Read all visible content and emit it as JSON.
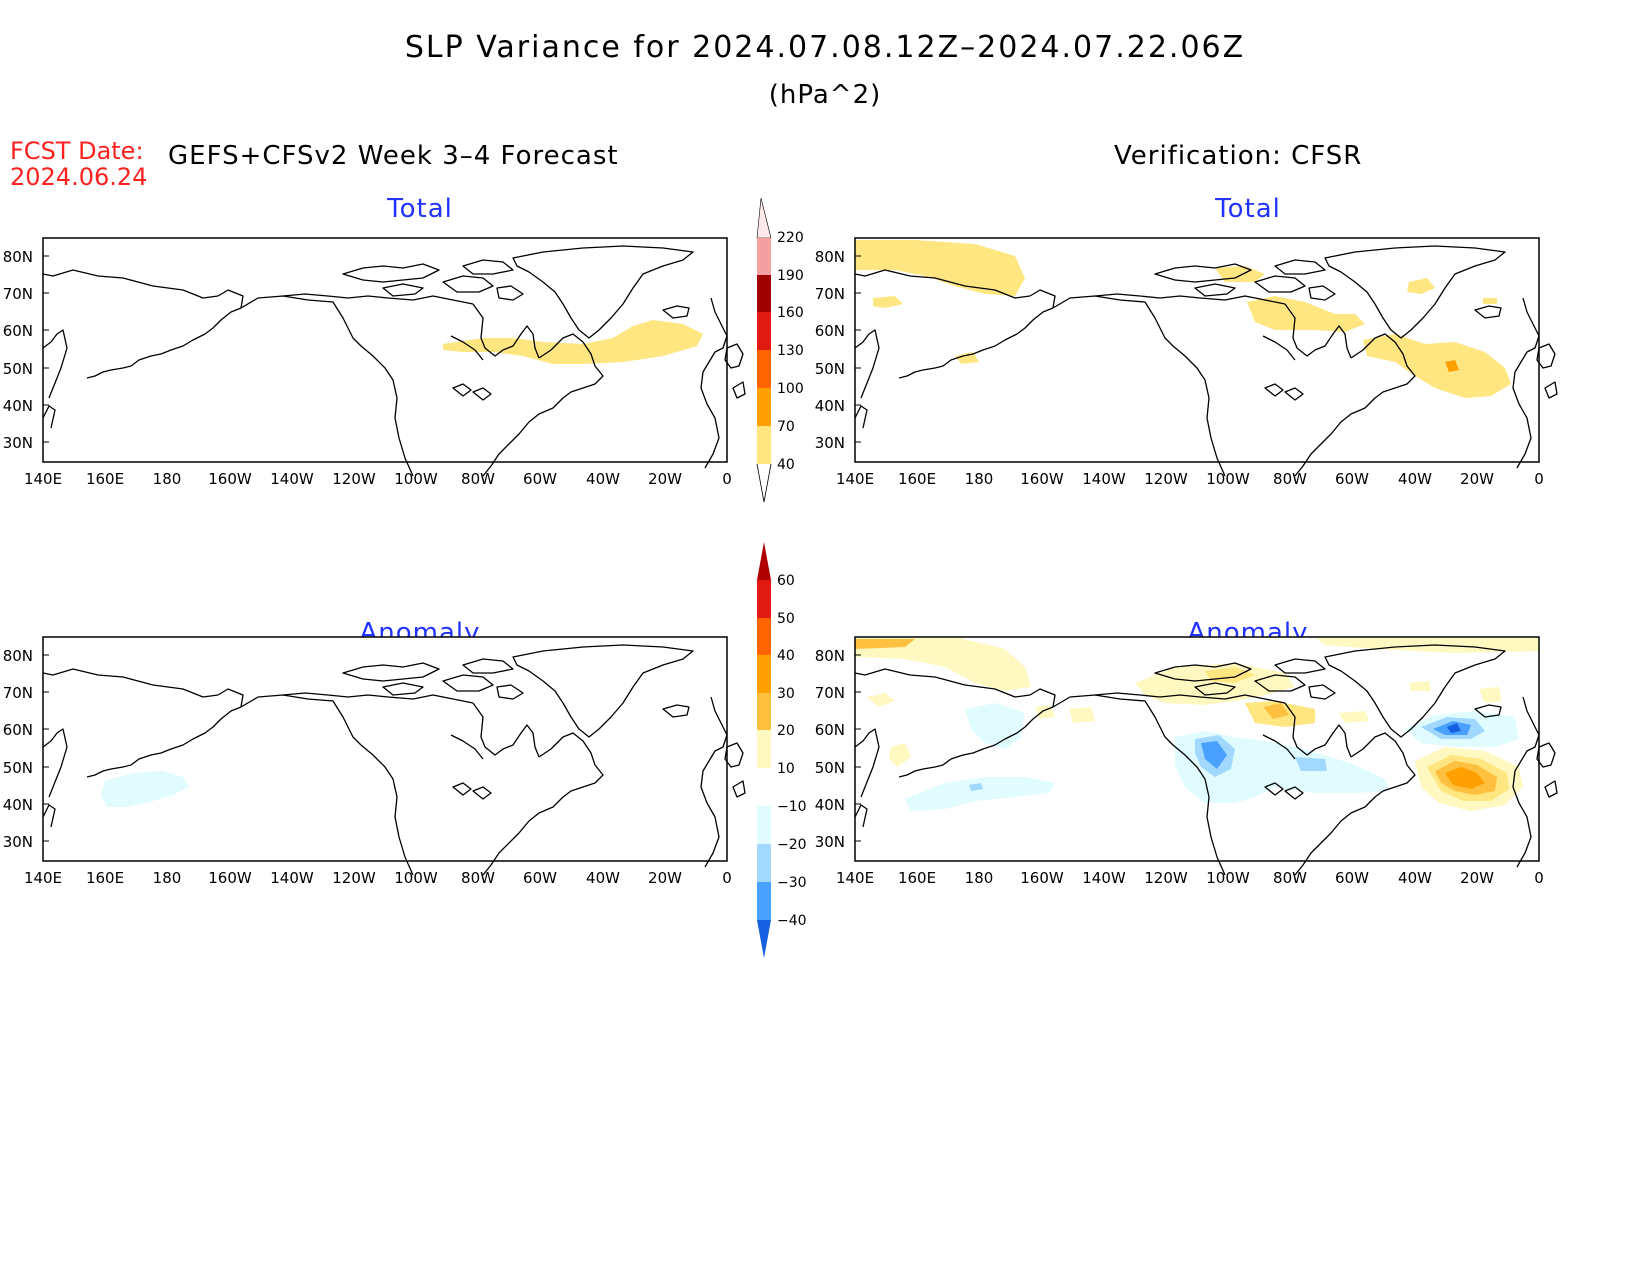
{
  "title": "SLP Variance for 2024.07.08.12Z–2024.07.22.06Z",
  "units": "(hPa^2)",
  "fcst_label": "FCST Date:",
  "fcst_date": "2024.06.24",
  "left_header": "GEFS+CFSv2 Week 3–4 Forecast",
  "right_header": "Verification: CFSR",
  "panels": {
    "top_left": "Total",
    "top_right": "Total",
    "bottom_left": "Anomaly",
    "bottom_right": "Anomaly"
  },
  "lat_labels": [
    "80N",
    "70N",
    "60N",
    "50N",
    "40N",
    "30N"
  ],
  "lon_labels": [
    "140E",
    "160E",
    "180",
    "160W",
    "140W",
    "120W",
    "100W",
    "80W",
    "60W",
    "40W",
    "20W",
    "0"
  ],
  "total_colorbar": {
    "labels": [
      "220",
      "190",
      "160",
      "130",
      "100",
      "70",
      "40"
    ],
    "colors": [
      "#ffe8ea",
      "#f4a0a0",
      "#a00000",
      "#e01a10",
      "#ff6400",
      "#ffa000",
      "#ffe680"
    ]
  },
  "anomaly_colorbar": {
    "labels": [
      "60",
      "50",
      "40",
      "30",
      "20",
      "10",
      "−10",
      "−20",
      "−30",
      "−40"
    ],
    "colors_positive": [
      "#b00000",
      "#e01a10",
      "#ff6400",
      "#ffa000",
      "#ffc040",
      "#ffe680",
      "#fff8c0"
    ],
    "colors_negative": [
      "#e0fcff",
      "#a0d8ff",
      "#4aa0ff",
      "#1460e0"
    ]
  }
}
